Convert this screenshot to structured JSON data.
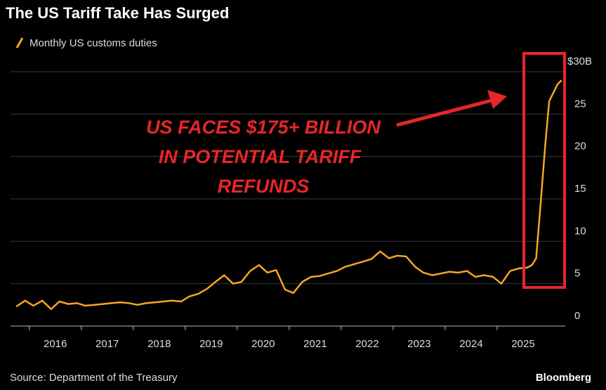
{
  "chart_data": {
    "type": "line",
    "title": "The US Tariff Take Has Surged",
    "source": "Source: Department of the Treasury",
    "brand": "Bloomberg",
    "annotation": [
      "US FACES $175+ BILLION",
      "IN POTENTIAL TARIFF",
      "REFUNDS"
    ],
    "x": [
      2015.25,
      2015.42,
      2015.58,
      2015.75,
      2015.92,
      2016.08,
      2016.25,
      2016.42,
      2016.58,
      2016.75,
      2016.92,
      2017.08,
      2017.25,
      2017.42,
      2017.58,
      2017.75,
      2017.92,
      2018.08,
      2018.25,
      2018.42,
      2018.58,
      2018.75,
      2018.92,
      2019.08,
      2019.25,
      2019.42,
      2019.58,
      2019.75,
      2019.92,
      2020.08,
      2020.25,
      2020.42,
      2020.58,
      2020.75,
      2020.92,
      2021.08,
      2021.25,
      2021.42,
      2021.58,
      2021.75,
      2021.92,
      2022.08,
      2022.25,
      2022.42,
      2022.58,
      2022.75,
      2022.92,
      2023.08,
      2023.25,
      2023.42,
      2023.58,
      2023.75,
      2023.92,
      2024.08,
      2024.25,
      2024.42,
      2024.58,
      2024.75,
      2024.92,
      2025.08,
      2025.17,
      2025.25,
      2025.33,
      2025.42,
      2025.5,
      2025.58,
      2025.66,
      2025.74
    ],
    "series": [
      {
        "name": "Monthly US customs duties",
        "color": "#f5a623",
        "values": [
          2.3,
          3.0,
          2.4,
          3.0,
          2.0,
          2.9,
          2.6,
          2.7,
          2.4,
          2.5,
          2.6,
          2.7,
          2.8,
          2.7,
          2.5,
          2.7,
          2.8,
          2.9,
          3.0,
          2.9,
          3.5,
          3.8,
          4.4,
          5.2,
          6.0,
          5.0,
          5.2,
          6.5,
          7.2,
          6.3,
          6.6,
          4.3,
          3.9,
          5.2,
          5.8,
          5.9,
          6.2,
          6.5,
          7.0,
          7.3,
          7.6,
          7.9,
          8.8,
          8.0,
          8.3,
          8.2,
          7.0,
          6.3,
          6.0,
          6.2,
          6.4,
          6.3,
          6.5,
          5.8,
          6.0,
          5.8,
          5.0,
          6.5,
          6.8,
          6.9,
          7.2,
          8.0,
          14.0,
          21.0,
          26.5,
          27.5,
          28.5,
          29.0
        ]
      }
    ],
    "xlim": [
      2015.14,
      2025.81
    ],
    "xticks": [
      2016,
      2017,
      2018,
      2019,
      2020,
      2021,
      2022,
      2023,
      2024,
      2025
    ],
    "ylim": [
      0,
      30
    ],
    "yticks": [
      0,
      5,
      10,
      15,
      20,
      25,
      {
        "value": 30,
        "label": "$30B"
      }
    ],
    "grid": true
  }
}
